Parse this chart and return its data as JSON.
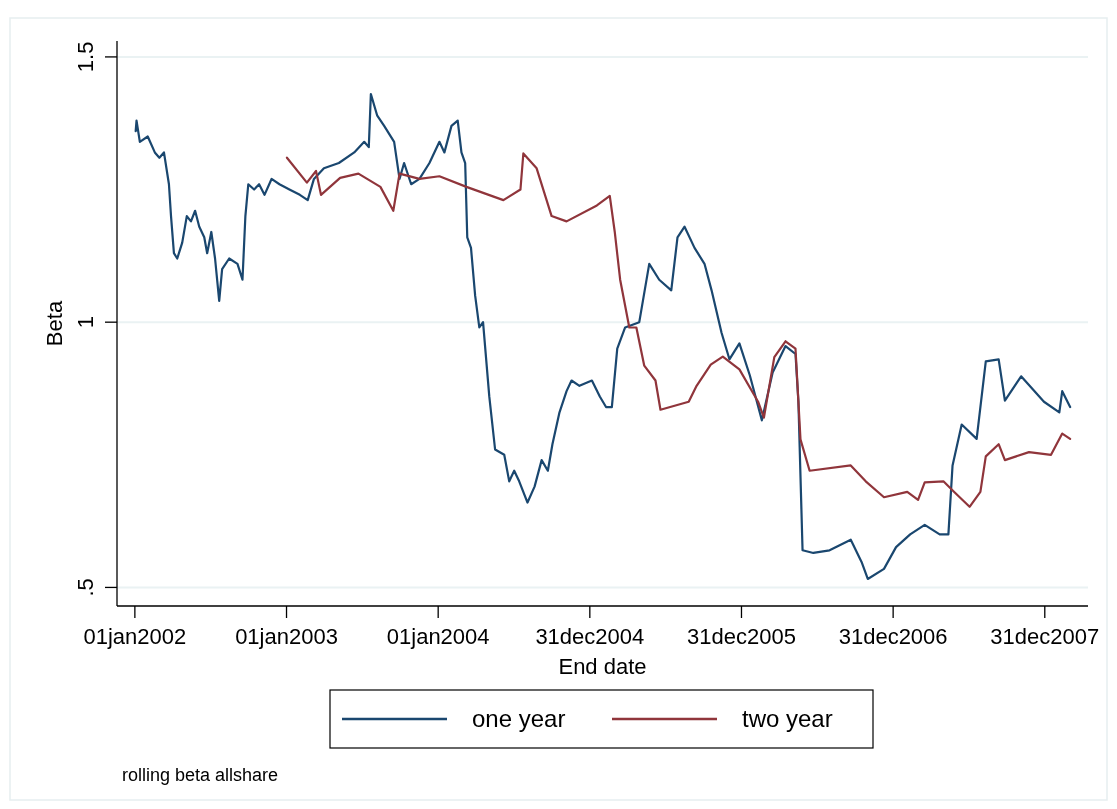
{
  "chart_data": {
    "type": "line",
    "xlabel": "End date",
    "ylabel": "Beta",
    "annotations": [
      "rolling beta allshare"
    ],
    "xlim": [
      "2001-11-19",
      "2008-04-13"
    ],
    "xticks": [
      {
        "value": "2002-01-01",
        "label": "01jan2002"
      },
      {
        "value": "2003-01-01",
        "label": "01jan2003"
      },
      {
        "value": "2004-01-01",
        "label": "01jan2004"
      },
      {
        "value": "2004-12-31",
        "label": "31dec2004"
      },
      {
        "value": "2005-12-31",
        "label": "31dec2005"
      },
      {
        "value": "2006-12-31",
        "label": "31dec2006"
      },
      {
        "value": "2007-12-31",
        "label": "31dec2007"
      }
    ],
    "ylim": [
      0.465,
      1.53
    ],
    "yticks": [
      {
        "value": 0.5,
        "label": ".5"
      },
      1,
      1.5
    ],
    "grid": "y",
    "legend": "bottom",
    "line_style": "solid",
    "marker": "none",
    "series": [
      {
        "name": "one year",
        "color": "#1a476f",
        "x": [
          "2002-01-03",
          "2002-01-05",
          "2002-01-13",
          "2002-02-01",
          "2002-02-18",
          "2002-03-01",
          "2002-03-12",
          "2002-03-24",
          "2002-03-29",
          "2002-04-05",
          "2002-04-13",
          "2002-04-25",
          "2002-05-06",
          "2002-05-16",
          "2002-05-26",
          "2002-06-05",
          "2002-06-17",
          "2002-06-24",
          "2002-07-04",
          "2002-07-13",
          "2002-07-23",
          "2002-07-30",
          "2002-08-16",
          "2002-09-05",
          "2002-09-17",
          "2002-09-24",
          "2002-10-01",
          "2002-10-15",
          "2002-10-27",
          "2002-11-09",
          "2002-11-26",
          "2002-12-15",
          "2003-01-08",
          "2003-02-02",
          "2003-02-21",
          "2003-03-08",
          "2003-04-01",
          "2003-05-07",
          "2003-06-13",
          "2003-07-07",
          "2003-07-18",
          "2003-07-23",
          "2003-08-07",
          "2003-08-24",
          "2003-09-17",
          "2003-09-30",
          "2003-10-11",
          "2003-10-28",
          "2003-11-17",
          "2003-12-11",
          "2004-01-04",
          "2004-01-16",
          "2004-02-02",
          "2004-02-17",
          "2004-02-26",
          "2004-03-06",
          "2004-03-11",
          "2004-03-20",
          "2004-03-30",
          "2004-04-09",
          "2004-04-18",
          "2004-05-03",
          "2004-05-17",
          "2004-06-08",
          "2004-06-20",
          "2004-07-02",
          "2004-07-14",
          "2004-08-03",
          "2004-08-20",
          "2004-09-06",
          "2004-09-21",
          "2004-10-02",
          "2004-10-19",
          "2004-11-05",
          "2004-11-17",
          "2004-12-06",
          "2005-01-05",
          "2005-01-24",
          "2005-02-08",
          "2005-02-22",
          "2005-03-07",
          "2005-03-26",
          "2005-04-29",
          "2005-05-23",
          "2005-06-16",
          "2005-07-15",
          "2005-07-30",
          "2005-08-16",
          "2005-09-09",
          "2005-10-03",
          "2005-10-20",
          "2005-11-13",
          "2005-12-02",
          "2005-12-26",
          "2006-01-20",
          "2006-02-18",
          "2006-03-16",
          "2006-04-16",
          "2006-05-10",
          "2006-05-17",
          "2006-05-27",
          "2006-06-22",
          "2006-07-31",
          "2006-09-20",
          "2006-10-16",
          "2006-10-31",
          "2006-12-09",
          "2007-01-07",
          "2007-02-10",
          "2007-03-17",
          "2007-04-22",
          "2007-05-13",
          "2007-05-23",
          "2007-06-14",
          "2007-07-20",
          "2007-08-11",
          "2007-09-11",
          "2007-09-26",
          "2007-11-04",
          "2007-12-29",
          "2008-02-04",
          "2008-02-11",
          "2008-03-01"
        ],
        "values": [
          1.36,
          1.38,
          1.34,
          1.35,
          1.32,
          1.31,
          1.32,
          1.26,
          1.2,
          1.13,
          1.12,
          1.15,
          1.2,
          1.19,
          1.21,
          1.18,
          1.16,
          1.13,
          1.17,
          1.12,
          1.04,
          1.1,
          1.12,
          1.11,
          1.08,
          1.2,
          1.26,
          1.25,
          1.26,
          1.24,
          1.27,
          1.26,
          1.25,
          1.24,
          1.23,
          1.27,
          1.29,
          1.3,
          1.32,
          1.34,
          1.33,
          1.43,
          1.39,
          1.37,
          1.34,
          1.27,
          1.3,
          1.26,
          1.27,
          1.3,
          1.34,
          1.32,
          1.37,
          1.38,
          1.32,
          1.3,
          1.16,
          1.14,
          1.05,
          0.99,
          1.0,
          0.86,
          0.76,
          0.75,
          0.7,
          0.72,
          0.7,
          0.66,
          0.69,
          0.74,
          0.72,
          0.77,
          0.83,
          0.87,
          0.89,
          0.88,
          0.89,
          0.86,
          0.84,
          0.84,
          0.95,
          0.99,
          1.0,
          1.11,
          1.08,
          1.06,
          1.16,
          1.18,
          1.14,
          1.11,
          1.06,
          0.98,
          0.93,
          0.96,
          0.9,
          0.815,
          0.905,
          0.955,
          0.94,
          0.85,
          0.57,
          0.565,
          0.57,
          0.59,
          0.548,
          0.516,
          0.535,
          0.576,
          0.6,
          0.618,
          0.6,
          0.6,
          0.73,
          0.807,
          0.78,
          0.926,
          0.93,
          0.852,
          0.898,
          0.85,
          0.83,
          0.87,
          0.84
        ]
      },
      {
        "name": "two year",
        "color": "#90353b",
        "x": [
          "2003-01-02",
          "2003-02-19",
          "2003-03-13",
          "2003-03-25",
          "2003-05-10",
          "2003-06-23",
          "2003-08-15",
          "2003-09-15",
          "2003-09-30",
          "2003-11-17",
          "2004-01-04",
          "2004-03-09",
          "2004-06-06",
          "2004-07-17",
          "2004-07-24",
          "2004-08-25",
          "2004-09-30",
          "2004-11-05",
          "2005-01-17",
          "2005-02-17",
          "2005-03-01",
          "2005-03-14",
          "2005-04-05",
          "2005-04-22",
          "2005-05-11",
          "2005-06-07",
          "2005-06-19",
          "2005-08-26",
          "2005-09-14",
          "2005-10-18",
          "2005-11-16",
          "2005-12-26",
          "2006-02-09",
          "2006-02-23",
          "2006-03-20",
          "2006-04-16",
          "2006-05-10",
          "2006-05-22",
          "2006-06-13",
          "2006-09-20",
          "2006-10-26",
          "2006-12-09",
          "2007-02-03",
          "2007-03-01",
          "2007-03-17",
          "2007-05-01",
          "2007-05-27",
          "2007-07-03",
          "2007-07-29",
          "2007-08-11",
          "2007-09-11",
          "2007-09-26",
          "2007-11-23",
          "2008-01-15",
          "2008-02-11",
          "2008-03-01"
        ],
        "values": [
          1.31,
          1.263,
          1.285,
          1.24,
          1.272,
          1.28,
          1.255,
          1.21,
          1.28,
          1.27,
          1.275,
          1.255,
          1.23,
          1.25,
          1.318,
          1.29,
          1.2,
          1.19,
          1.22,
          1.238,
          1.17,
          1.08,
          0.99,
          0.99,
          0.918,
          0.89,
          0.835,
          0.85,
          0.88,
          0.92,
          0.935,
          0.911,
          0.85,
          0.82,
          0.934,
          0.964,
          0.95,
          0.779,
          0.72,
          0.73,
          0.7,
          0.67,
          0.68,
          0.665,
          0.698,
          0.7,
          0.68,
          0.652,
          0.68,
          0.747,
          0.77,
          0.74,
          0.755,
          0.75,
          0.79,
          0.78
        ]
      }
    ]
  }
}
